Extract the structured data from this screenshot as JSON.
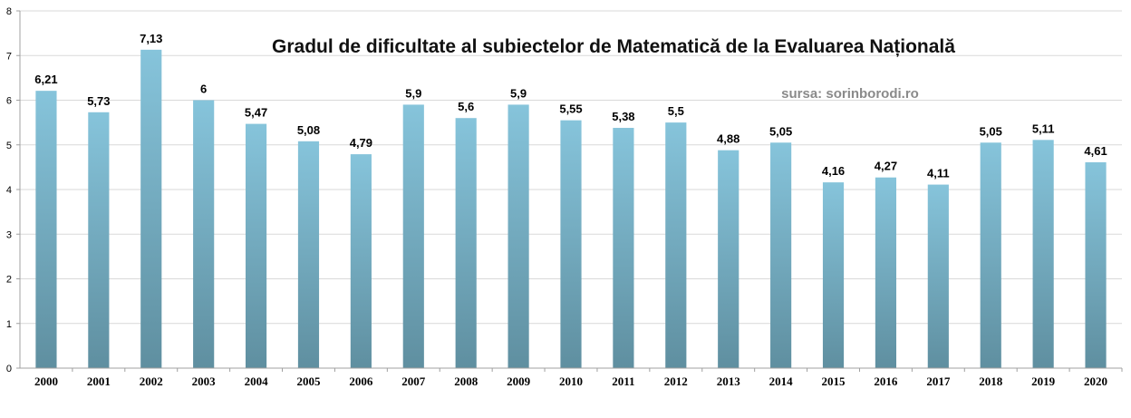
{
  "chart_data": {
    "type": "bar",
    "title": "Gradul de dificultate al subiectelor de Matematică de la Evaluarea Națională",
    "source_note": "sursa: sorinborodi.ro",
    "categories": [
      "2000",
      "2001",
      "2002",
      "2003",
      "2004",
      "2005",
      "2006",
      "2007",
      "2008",
      "2009",
      "2010",
      "2011",
      "2012",
      "2013",
      "2014",
      "2015",
      "2016",
      "2017",
      "2018",
      "2019",
      "2020"
    ],
    "values": [
      6.21,
      5.73,
      7.13,
      6,
      5.47,
      5.08,
      4.79,
      5.9,
      5.6,
      5.9,
      5.55,
      5.38,
      5.5,
      4.88,
      5.05,
      4.16,
      4.27,
      4.11,
      5.05,
      5.11,
      4.61
    ],
    "data_labels": [
      "6,21",
      "5,73",
      "7,13",
      "6",
      "5,47",
      "5,08",
      "4,79",
      "5,9",
      "5,6",
      "5,9",
      "5,55",
      "5,38",
      "5,5",
      "4,88",
      "5,05",
      "4,16",
      "4,27",
      "4,11",
      "5,05",
      "5,11",
      "4,61"
    ],
    "y_ticks": [
      "0",
      "1",
      "2",
      "3",
      "4",
      "5",
      "6",
      "7",
      "8"
    ],
    "ylim": [
      0,
      8
    ],
    "xlabel": "",
    "ylabel": "",
    "grid": true,
    "legend": "none",
    "colors": {
      "bar_top": "#86c4db",
      "bar_bottom": "#5f8fa0",
      "grid": "#d9d9d9",
      "axis": "#a0a0a0"
    }
  }
}
